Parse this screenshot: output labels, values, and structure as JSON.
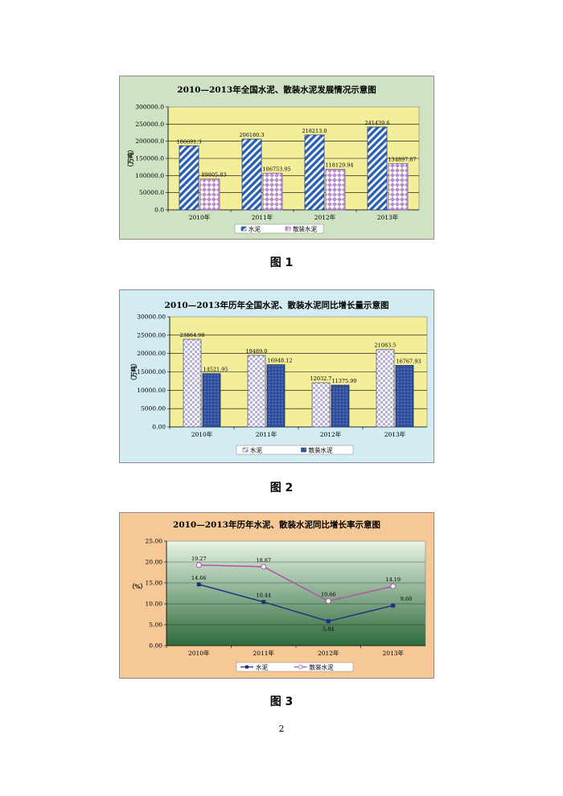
{
  "page_number": "2",
  "chart_data": [
    {
      "type": "bar",
      "title": "2010—2013年全国水泥、散装水泥发展情况示意图",
      "ylabel": "（万吨）",
      "caption": "图 1",
      "categories": [
        "2010年",
        "2011年",
        "2012年",
        "2013年"
      ],
      "series": [
        {
          "name": "水泥",
          "values": [
            186691.3,
            206180.3,
            218213.0,
            241439.6
          ],
          "labels": [
            "186691.3",
            "206180.3",
            "218213.0",
            "241439.6"
          ]
        },
        {
          "name": "散装水泥",
          "values": [
            89805.83,
            106753.95,
            118129.94,
            134897.87
          ],
          "labels": [
            "89805.83",
            "106753.95",
            "118129.94",
            "134897.87"
          ]
        }
      ],
      "ylim": [
        0,
        300000
      ],
      "yticks": [
        "0.0",
        "50000.0",
        "100000.0",
        "150000.0",
        "200000.0",
        "250000.0",
        "300000.0"
      ],
      "grid": true,
      "legend": "bottom",
      "colors": {
        "frame": "#cfe3c4",
        "plot": "#f3ee9a",
        "series0": "#2b5fb4",
        "series1": "#c9a3d6"
      }
    },
    {
      "type": "bar",
      "title": "2010—2013年历年全国水泥、散装水泥同比增长量示意图",
      "ylabel": "（万吨）",
      "caption": "图 2",
      "categories": [
        "2010年",
        "2011年",
        "2012年",
        "2013年"
      ],
      "series": [
        {
          "name": "水泥",
          "values": [
            23864.98,
            19489.0,
            12032.7,
            21083.5
          ],
          "labels": [
            "23864.98",
            "19489.0",
            "12032.7",
            "21083.5"
          ]
        },
        {
          "name": "散装水泥",
          "values": [
            14521.95,
            16948.12,
            11375.99,
            16767.93
          ],
          "labels": [
            "14521.95",
            "16948.12",
            "11375.99",
            "16767.93"
          ]
        }
      ],
      "ylim": [
        0,
        30000
      ],
      "yticks": [
        "0.00",
        "5000.00",
        "10000.00",
        "15000.00",
        "20000.00",
        "25000.00",
        "30000.00"
      ],
      "grid": true,
      "legend": "bottom",
      "colors": {
        "frame": "#d3ecf1",
        "plot": "#f3ee9a",
        "series0": "#c9c6e6",
        "series1": "#2d4f9e"
      }
    },
    {
      "type": "line",
      "title": "2010—2013年历年水泥、散装水泥同比增长率示意图",
      "ylabel": "（%）",
      "caption": "图 3",
      "categories": [
        "2010年",
        "2011年",
        "2012年",
        "2013年"
      ],
      "series": [
        {
          "name": "水泥",
          "values": [
            14.66,
            10.44,
            5.84,
            9.6
          ],
          "labels": [
            "14.66",
            "10.44",
            "5.84",
            "9.60"
          ]
        },
        {
          "name": "散装水泥",
          "values": [
            19.27,
            18.87,
            10.66,
            14.19
          ],
          "labels": [
            "19.27",
            "18.87",
            "10.66",
            "14.19"
          ]
        }
      ],
      "ylim": [
        0,
        25
      ],
      "yticks": [
        "0.00",
        "5.00",
        "10.00",
        "15.00",
        "20.00",
        "25.00"
      ],
      "grid": true,
      "legend": "bottom",
      "colors": {
        "frame": "#f6c896",
        "plot_top": "#e6f4e4",
        "plot_bottom": "#2e6a3c",
        "series0": "#1f2f7a",
        "series1": "#b24da8"
      }
    }
  ]
}
